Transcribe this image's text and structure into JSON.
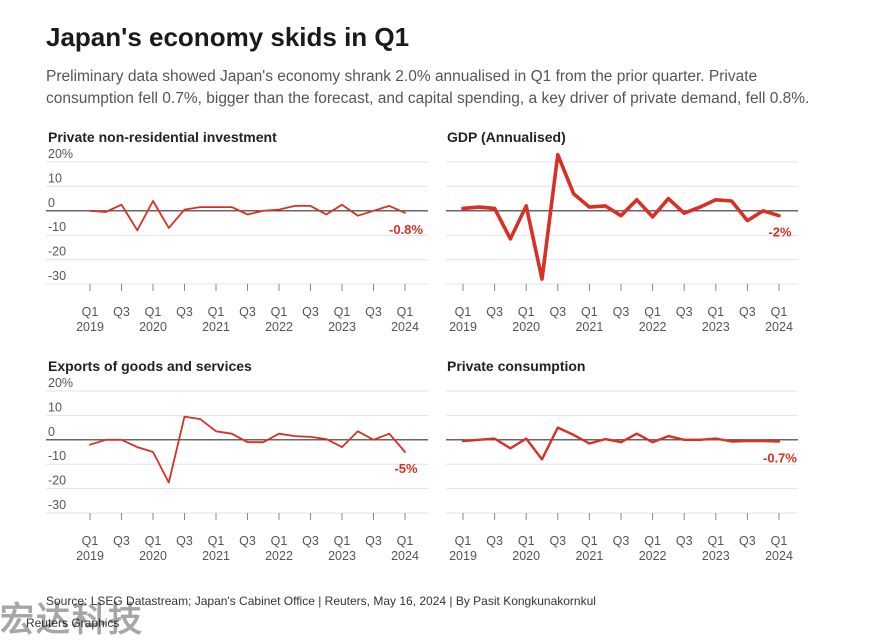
{
  "title": "Japan's economy skids in Q1",
  "subtitle": "Preliminary data showed Japan's economy shrank 2.0% annualised in Q1 from the prior quarter. Private consumption fell 0.7%, bigger than the forecast, and capital spending, a key driver of private demand, fell 0.8%.",
  "source": "Source: LSEG Datastream; Japan's Cabinet Office | Reuters, May 16, 2024 | By Pasit Kongkunakornkul",
  "credit": "Reuters Graphics",
  "watermark": "宏达科技",
  "colors": {
    "line": "#d93025",
    "grid": "#e3e3e3",
    "zero": "#333333"
  },
  "chart_data": [
    {
      "type": "line",
      "title": "Private non-residential investment",
      "y_ticks": [
        "20%",
        "10",
        "0",
        "-10",
        "-20",
        "-30"
      ],
      "ylim": [
        -30,
        20
      ],
      "x_tick_quarters": [
        "Q1",
        "Q3",
        "Q1",
        "Q3",
        "Q1",
        "Q3",
        "Q1",
        "Q3",
        "Q1",
        "Q3",
        "Q1"
      ],
      "x_tick_years": [
        "2019",
        "2020",
        "2021",
        "2022",
        "2023",
        "2024"
      ],
      "x": [
        "2019 Q1",
        "2019 Q2",
        "2019 Q3",
        "2019 Q4",
        "2020 Q1",
        "2020 Q2",
        "2020 Q3",
        "2020 Q4",
        "2021 Q1",
        "2021 Q2",
        "2021 Q3",
        "2021 Q4",
        "2022 Q1",
        "2022 Q2",
        "2022 Q3",
        "2022 Q4",
        "2023 Q1",
        "2023 Q2",
        "2023 Q3",
        "2023 Q4",
        "2024 Q1"
      ],
      "values": [
        0,
        -0.5,
        2.5,
        -8,
        4,
        -7,
        0.5,
        1.5,
        1.5,
        1.5,
        -1.5,
        0,
        0.5,
        2,
        2,
        -1.5,
        2.5,
        -2,
        0,
        2,
        -0.8
      ],
      "end_label": "-0.8%",
      "line_width": "thin"
    },
    {
      "type": "line",
      "title": "GDP (Annualised)",
      "y_ticks": [
        "",
        "",
        "",
        "",
        "",
        ""
      ],
      "ylim": [
        -30,
        20
      ],
      "x_tick_quarters": [
        "Q1",
        "Q3",
        "Q1",
        "Q3",
        "Q1",
        "Q3",
        "Q1",
        "Q3",
        "Q1",
        "Q3",
        "Q1"
      ],
      "x_tick_years": [
        "2019",
        "2020",
        "2021",
        "2022",
        "2023",
        "2024"
      ],
      "x": [
        "2019 Q1",
        "2019 Q2",
        "2019 Q3",
        "2019 Q4",
        "2020 Q1",
        "2020 Q2",
        "2020 Q3",
        "2020 Q4",
        "2021 Q1",
        "2021 Q2",
        "2021 Q3",
        "2021 Q4",
        "2022 Q1",
        "2022 Q2",
        "2022 Q3",
        "2022 Q4",
        "2023 Q1",
        "2023 Q2",
        "2023 Q3",
        "2023 Q4",
        "2024 Q1"
      ],
      "values": [
        1,
        1.5,
        1,
        -11.5,
        2,
        -28,
        23,
        7,
        1.5,
        2,
        -2,
        4.5,
        -2.5,
        5,
        -1,
        1.5,
        4.5,
        4,
        -4,
        0,
        -2
      ],
      "end_label": "-2%",
      "line_width": "thick"
    },
    {
      "type": "line",
      "title": "Exports of goods and services",
      "y_ticks": [
        "20%",
        "10",
        "0",
        "-10",
        "-20",
        "-30"
      ],
      "ylim": [
        -30,
        20
      ],
      "x_tick_quarters": [
        "Q1",
        "Q3",
        "Q1",
        "Q3",
        "Q1",
        "Q3",
        "Q1",
        "Q3",
        "Q1",
        "Q3",
        "Q1"
      ],
      "x_tick_years": [
        "2019",
        "2020",
        "2021",
        "2022",
        "2023",
        "2024"
      ],
      "x": [
        "2019 Q1",
        "2019 Q2",
        "2019 Q3",
        "2019 Q4",
        "2020 Q1",
        "2020 Q2",
        "2020 Q3",
        "2020 Q4",
        "2021 Q1",
        "2021 Q2",
        "2021 Q3",
        "2021 Q4",
        "2022 Q1",
        "2022 Q2",
        "2022 Q3",
        "2022 Q4",
        "2023 Q1",
        "2023 Q2",
        "2023 Q3",
        "2023 Q4",
        "2024 Q1"
      ],
      "values": [
        -2,
        0,
        0,
        -3,
        -5,
        -17.5,
        9.5,
        8.5,
        3.5,
        2.5,
        -1,
        -1,
        2.5,
        1.5,
        1.2,
        0.3,
        -3,
        3.5,
        0,
        2.5,
        -5
      ],
      "end_label": "-5%",
      "line_width": "thin"
    },
    {
      "type": "line",
      "title": "Private consumption",
      "y_ticks": [
        "",
        "",
        "",
        "",
        "",
        ""
      ],
      "ylim": [
        -30,
        20
      ],
      "x_tick_quarters": [
        "Q1",
        "Q3",
        "Q1",
        "Q3",
        "Q1",
        "Q3",
        "Q1",
        "Q3",
        "Q1",
        "Q3",
        "Q1"
      ],
      "x_tick_years": [
        "2019",
        "2020",
        "2021",
        "2022",
        "2023",
        "2024"
      ],
      "x": [
        "2019 Q1",
        "2019 Q2",
        "2019 Q3",
        "2019 Q4",
        "2020 Q1",
        "2020 Q2",
        "2020 Q3",
        "2020 Q4",
        "2021 Q1",
        "2021 Q2",
        "2021 Q3",
        "2021 Q4",
        "2022 Q1",
        "2022 Q2",
        "2022 Q3",
        "2022 Q4",
        "2023 Q1",
        "2023 Q2",
        "2023 Q3",
        "2023 Q4",
        "2024 Q1"
      ],
      "values": [
        -0.5,
        0,
        0.5,
        -3.5,
        0.5,
        -8,
        5,
        2,
        -1.5,
        0.3,
        -1,
        2.5,
        -1,
        1.5,
        0,
        0,
        0.5,
        -0.7,
        -0.5,
        -0.5,
        -0.7
      ],
      "end_label": "-0.7%",
      "line_width": "thick-ish"
    }
  ]
}
